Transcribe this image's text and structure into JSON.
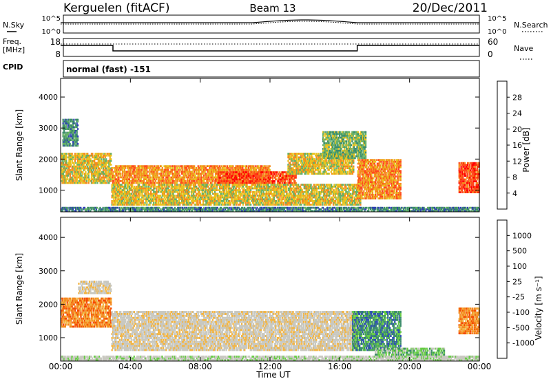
{
  "header": {
    "station": "Kerguelen (fitACF)",
    "beam": "Beam 13",
    "date": "20/Dec/2011"
  },
  "noise_panel": {
    "left_label": "N.Sky",
    "right_label": "N.Search",
    "left_top_tick": "10^5",
    "left_bottom_tick": "10^0",
    "right_top_tick": "10^5",
    "right_bottom_tick": "10^0"
  },
  "freq_panel": {
    "left_label_1": "Freq.",
    "left_label_2": "[MHz]",
    "left_top_tick": "18",
    "left_bottom_tick": "8",
    "right_label": "Nave",
    "right_top_tick": "60",
    "right_bottom_tick": "0"
  },
  "cpid": {
    "label": "CPID",
    "value": "normal (fast) -151"
  },
  "chart_data": [
    {
      "type": "heatmap",
      "quantity": "Power",
      "ylabel": "Slant Range [km]",
      "yticks": [
        "4000",
        "3000",
        "2000",
        "1000"
      ],
      "ylim": [
        300,
        4600
      ],
      "xlim": [
        0,
        24
      ],
      "colorbar": {
        "label": "Power [dB]",
        "ticks": [
          "28",
          "24",
          "20",
          "16",
          "12",
          "8",
          "4"
        ],
        "colors": [
          "#0000ff",
          "#2f3fb4",
          "#3c8c6c",
          "#66b066",
          "#e8c21c",
          "#f58a1e",
          "#ff4a1c",
          "#ff0000"
        ]
      },
      "echo_regions": [
        {
          "t": [
            0.0,
            2.9
          ],
          "r": [
            1200,
            2200
          ],
          "level": 4
        },
        {
          "t": [
            0.1,
            1.0
          ],
          "r": [
            2400,
            3300
          ],
          "level": 2
        },
        {
          "t": [
            2.9,
            12.0
          ],
          "r": [
            1200,
            1800
          ],
          "level": 5
        },
        {
          "t": [
            9.0,
            13.5
          ],
          "r": [
            1200,
            1600
          ],
          "level": 6
        },
        {
          "t": [
            2.9,
            17.2
          ],
          "r": [
            500,
            1200
          ],
          "level": 4
        },
        {
          "t": [
            13.0,
            16.8
          ],
          "r": [
            1500,
            2200
          ],
          "level": 4
        },
        {
          "t": [
            15.0,
            17.5
          ],
          "r": [
            2000,
            2900
          ],
          "level": 3
        },
        {
          "t": [
            17.0,
            19.5
          ],
          "r": [
            700,
            2000
          ],
          "level": 5
        },
        {
          "t": [
            22.8,
            24.0
          ],
          "r": [
            900,
            1900
          ],
          "level": 6
        },
        {
          "t": [
            0.0,
            24.0
          ],
          "r": [
            300,
            450
          ],
          "level": 2
        }
      ]
    },
    {
      "type": "heatmap",
      "quantity": "Velocity",
      "ylabel": "Slant Range [km]",
      "yticks": [
        "4000",
        "3000",
        "2000",
        "1000"
      ],
      "ylim": [
        300,
        4600
      ],
      "xlim": [
        0,
        24
      ],
      "colorbar": {
        "label": "Velocity [m s⁻¹]",
        "ticks": [
          "1000",
          "500",
          "100",
          "25",
          "-25",
          "-100",
          "-500",
          "-1000"
        ],
        "colors": [
          "#ee0000",
          "#f44a00",
          "#f58a1e",
          "#f2b544",
          "#c8c8c0",
          "#c8c8c0",
          "#66cc44",
          "#3c8c6c",
          "#2f4fb4"
        ]
      },
      "echo_regions": [
        {
          "t": [
            0.0,
            2.9
          ],
          "r": [
            1300,
            2200
          ],
          "level": 2
        },
        {
          "t": [
            1.0,
            2.9
          ],
          "r": [
            2300,
            2700
          ],
          "level": 4
        },
        {
          "t": [
            2.9,
            17.0
          ],
          "r": [
            600,
            1800
          ],
          "level": 4
        },
        {
          "t": [
            16.7,
            19.5
          ],
          "r": [
            600,
            1800
          ],
          "level": 7
        },
        {
          "t": [
            18.0,
            22.0
          ],
          "r": [
            400,
            700
          ],
          "level": 6
        },
        {
          "t": [
            22.8,
            24.0
          ],
          "r": [
            1100,
            1900
          ],
          "level": 2
        },
        {
          "t": [
            0.0,
            24.0
          ],
          "r": [
            300,
            450
          ],
          "level": 5
        }
      ]
    }
  ],
  "x_axis": {
    "ticks": [
      "00:00",
      "04:00",
      "08:00",
      "12:00",
      "16:00",
      "20:00",
      "00:00"
    ],
    "label": "Time UT"
  }
}
